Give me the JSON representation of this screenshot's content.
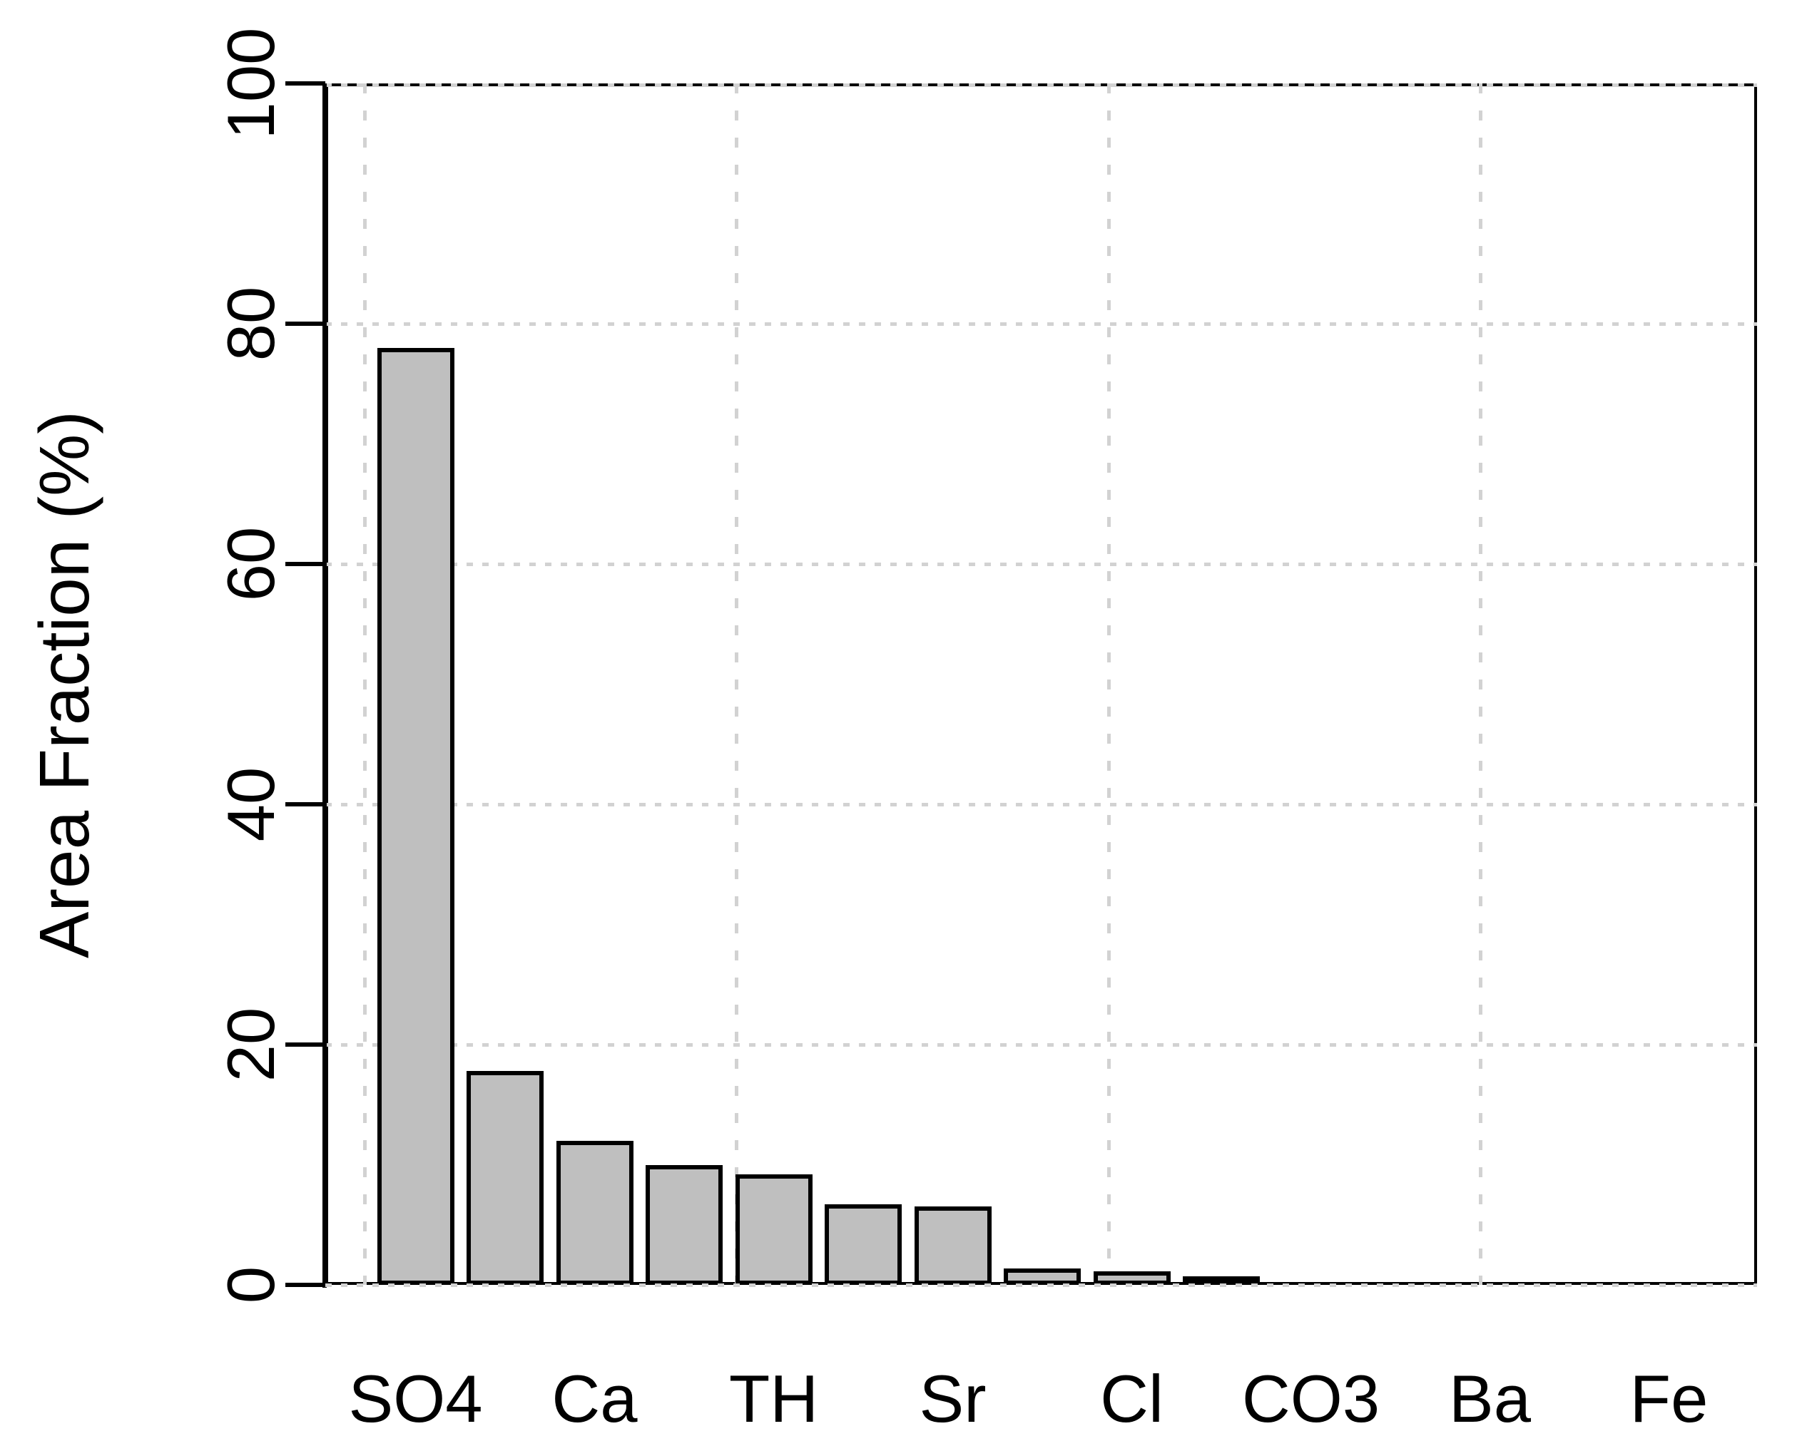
{
  "page": {
    "background": "#ffffff"
  },
  "chart_data": {
    "type": "bar",
    "title": "",
    "xlabel": "",
    "ylabel": "Area Fraction (%)",
    "ylim": [
      0,
      100
    ],
    "yticks": [
      0,
      20,
      40,
      60,
      80,
      100
    ],
    "categories": [
      "SO4",
      "",
      "Ca",
      "",
      "TH",
      "",
      "Sr",
      "",
      "Cl",
      "",
      "CO3",
      "",
      "Ba",
      "",
      "Fe"
    ],
    "values": [
      78,
      17.8,
      12,
      10,
      9.2,
      6.7,
      6.5,
      1.35,
      1.15,
      0.25,
      0,
      0,
      0,
      0,
      0
    ],
    "x_tick_labels_shown": [
      "SO4",
      "Ca",
      "TH",
      "Sr",
      "Cl",
      "CO3",
      "Ba",
      "Fe"
    ],
    "grid": true,
    "legend_position": "none",
    "bar_fill": "#bfbfbf",
    "bar_border": "#000000",
    "axis_color": "#000000",
    "grid_color": "#d2d2d2",
    "text_color": "#000000"
  }
}
